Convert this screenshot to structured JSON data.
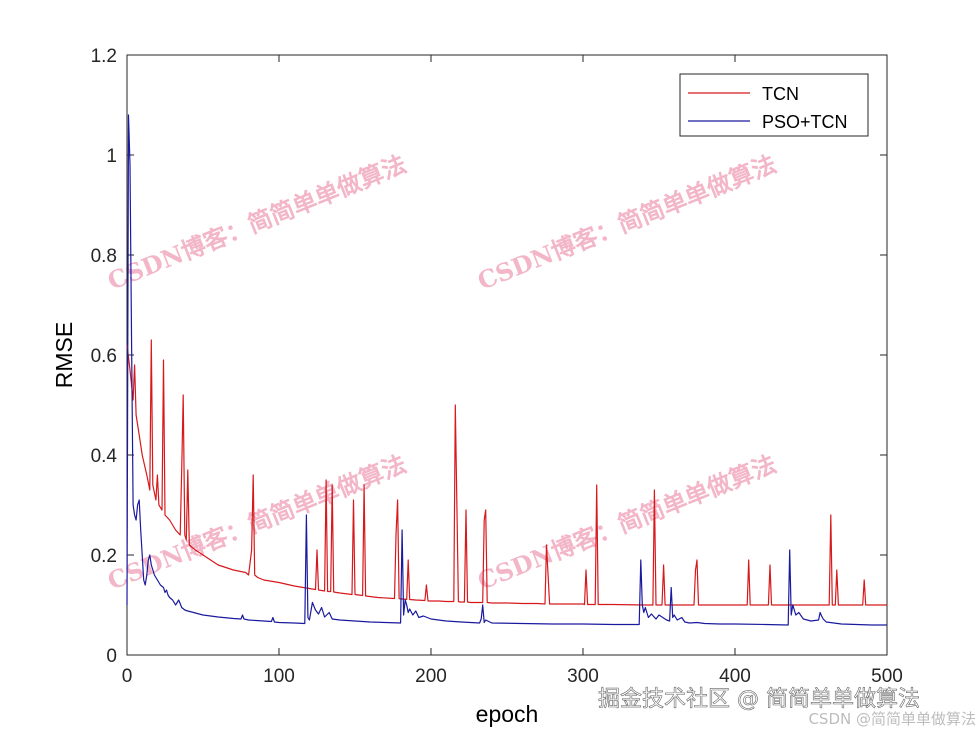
{
  "chart_data": {
    "type": "line",
    "title": "",
    "xlabel": "epoch",
    "ylabel": "RMSE",
    "xlim": [
      0,
      500
    ],
    "ylim": [
      0,
      1.2
    ],
    "xticks": [
      0,
      100,
      200,
      300,
      400,
      500
    ],
    "yticks": [
      0,
      0.2,
      0.4,
      0.6,
      0.8,
      1,
      1.2
    ],
    "xtick_labels": [
      "0",
      "100",
      "200",
      "300",
      "400",
      "500"
    ],
    "ytick_labels": [
      "0",
      "0.2",
      "0.4",
      "0.6",
      "0.8",
      "1",
      "1.2"
    ],
    "grid": false,
    "legend_position": "top-right",
    "series": [
      {
        "name": "TCN",
        "color": "#d7191c",
        "x": [
          0,
          2,
          4,
          5,
          6,
          8,
          10,
          13,
          15,
          16,
          17,
          19,
          20,
          21,
          23,
          24,
          25,
          28,
          32,
          35,
          36,
          37,
          38,
          39,
          40,
          41,
          45,
          50,
          60,
          70,
          78,
          80,
          82,
          83,
          84,
          86,
          90,
          100,
          110,
          120,
          124,
          125,
          126,
          130,
          131,
          132,
          134,
          135,
          136,
          140,
          148,
          149,
          150,
          155,
          156,
          157,
          165,
          176,
          177,
          178,
          179,
          180,
          182,
          184,
          185,
          186,
          190,
          196,
          197,
          198,
          205,
          210,
          215,
          216,
          218,
          219,
          220,
          222,
          223,
          224,
          226,
          232,
          234,
          235,
          236,
          237,
          240,
          250,
          260,
          270,
          275,
          276,
          278,
          290,
          300,
          301,
          302,
          303,
          305,
          308,
          309,
          310,
          320,
          340,
          346,
          347,
          348,
          350,
          352,
          353,
          354,
          360,
          370,
          373,
          374,
          375,
          376,
          380,
          400,
          408,
          409,
          410,
          420,
          422,
          423,
          424,
          440,
          460,
          462,
          463,
          464,
          466,
          467,
          468,
          480,
          484,
          485,
          486,
          490,
          500
        ],
        "y": [
          0.62,
          0.57,
          0.51,
          0.58,
          0.48,
          0.44,
          0.4,
          0.36,
          0.33,
          0.63,
          0.34,
          0.31,
          0.36,
          0.3,
          0.29,
          0.59,
          0.28,
          0.27,
          0.25,
          0.24,
          0.37,
          0.52,
          0.24,
          0.23,
          0.37,
          0.22,
          0.21,
          0.2,
          0.18,
          0.17,
          0.165,
          0.16,
          0.21,
          0.36,
          0.16,
          0.155,
          0.15,
          0.145,
          0.138,
          0.133,
          0.131,
          0.21,
          0.13,
          0.128,
          0.35,
          0.127,
          0.127,
          0.34,
          0.126,
          0.124,
          0.121,
          0.31,
          0.121,
          0.119,
          0.34,
          0.118,
          0.115,
          0.113,
          0.24,
          0.31,
          0.113,
          0.112,
          0.112,
          0.111,
          0.19,
          0.111,
          0.11,
          0.109,
          0.14,
          0.108,
          0.108,
          0.107,
          0.107,
          0.5,
          0.107,
          0.106,
          0.106,
          0.106,
          0.29,
          0.106,
          0.105,
          0.105,
          0.105,
          0.27,
          0.29,
          0.105,
          0.104,
          0.104,
          0.103,
          0.103,
          0.102,
          0.22,
          0.102,
          0.102,
          0.102,
          0.101,
          0.17,
          0.101,
          0.101,
          0.101,
          0.34,
          0.101,
          0.101,
          0.1,
          0.1,
          0.33,
          0.1,
          0.1,
          0.1,
          0.18,
          0.1,
          0.1,
          0.1,
          0.1,
          0.17,
          0.19,
          0.1,
          0.1,
          0.1,
          0.1,
          0.19,
          0.1,
          0.1,
          0.1,
          0.18,
          0.1,
          0.1,
          0.1,
          0.1,
          0.28,
          0.1,
          0.1,
          0.17,
          0.1,
          0.1,
          0.1,
          0.15,
          0.1,
          0.1,
          0.1
        ]
      },
      {
        "name": "PSO+TCN",
        "color": "#1a1a9e",
        "x": [
          0,
          1,
          2,
          3,
          4,
          5,
          6,
          7,
          8,
          9,
          10,
          11,
          12,
          13,
          14,
          15,
          16,
          18,
          20,
          22,
          24,
          25,
          26,
          27,
          28,
          30,
          32,
          34,
          36,
          38,
          40,
          45,
          50,
          60,
          70,
          75,
          76,
          77,
          80,
          90,
          95,
          96,
          97,
          100,
          110,
          117,
          118,
          119,
          120,
          122,
          124,
          126,
          128,
          130,
          133,
          135,
          140,
          150,
          160,
          170,
          180,
          181,
          182,
          183,
          184,
          185,
          186,
          188,
          190,
          192,
          195,
          200,
          210,
          220,
          232,
          233,
          234,
          235,
          236,
          240,
          260,
          280,
          300,
          320,
          337,
          338,
          339,
          340,
          341,
          343,
          345,
          348,
          350,
          355,
          357,
          358,
          359,
          360,
          362,
          365,
          367,
          370,
          375,
          380,
          390,
          400,
          420,
          435,
          436,
          437,
          438,
          439,
          440,
          442,
          445,
          450,
          455,
          456,
          457,
          458,
          460,
          465,
          470,
          480,
          490,
          500
        ],
        "y": [
          0.1,
          1.08,
          0.98,
          0.62,
          0.3,
          0.28,
          0.27,
          0.3,
          0.31,
          0.25,
          0.2,
          0.15,
          0.14,
          0.16,
          0.19,
          0.2,
          0.18,
          0.16,
          0.15,
          0.14,
          0.135,
          0.125,
          0.13,
          0.12,
          0.115,
          0.11,
          0.1,
          0.11,
          0.095,
          0.09,
          0.088,
          0.084,
          0.08,
          0.076,
          0.073,
          0.072,
          0.08,
          0.072,
          0.07,
          0.068,
          0.067,
          0.075,
          0.066,
          0.065,
          0.064,
          0.063,
          0.28,
          0.075,
          0.07,
          0.105,
          0.09,
          0.082,
          0.095,
          0.076,
          0.085,
          0.072,
          0.07,
          0.068,
          0.066,
          0.065,
          0.064,
          0.25,
          0.08,
          0.11,
          0.1,
          0.085,
          0.092,
          0.08,
          0.088,
          0.075,
          0.078,
          0.072,
          0.068,
          0.066,
          0.064,
          0.072,
          0.1,
          0.065,
          0.07,
          0.064,
          0.063,
          0.062,
          0.062,
          0.061,
          0.061,
          0.19,
          0.1,
          0.085,
          0.095,
          0.075,
          0.082,
          0.072,
          0.08,
          0.07,
          0.068,
          0.135,
          0.075,
          0.08,
          0.07,
          0.075,
          0.066,
          0.064,
          0.065,
          0.063,
          0.062,
          0.062,
          0.061,
          0.06,
          0.21,
          0.08,
          0.1,
          0.09,
          0.08,
          0.085,
          0.072,
          0.068,
          0.07,
          0.085,
          0.078,
          0.072,
          0.066,
          0.064,
          0.062,
          0.061,
          0.06,
          0.06
        ]
      }
    ]
  },
  "watermarks": [
    "CSDN博客：简简单单做算法",
    "CSDN博客：简简单单做算法",
    "CSDN博客：简简单单做算法",
    "CSDN博客：简简单单做算法"
  ],
  "footer": {
    "main": "掘金技术社区 @ 简简单单做算法",
    "small": "CSDN @简简单单做算法"
  }
}
